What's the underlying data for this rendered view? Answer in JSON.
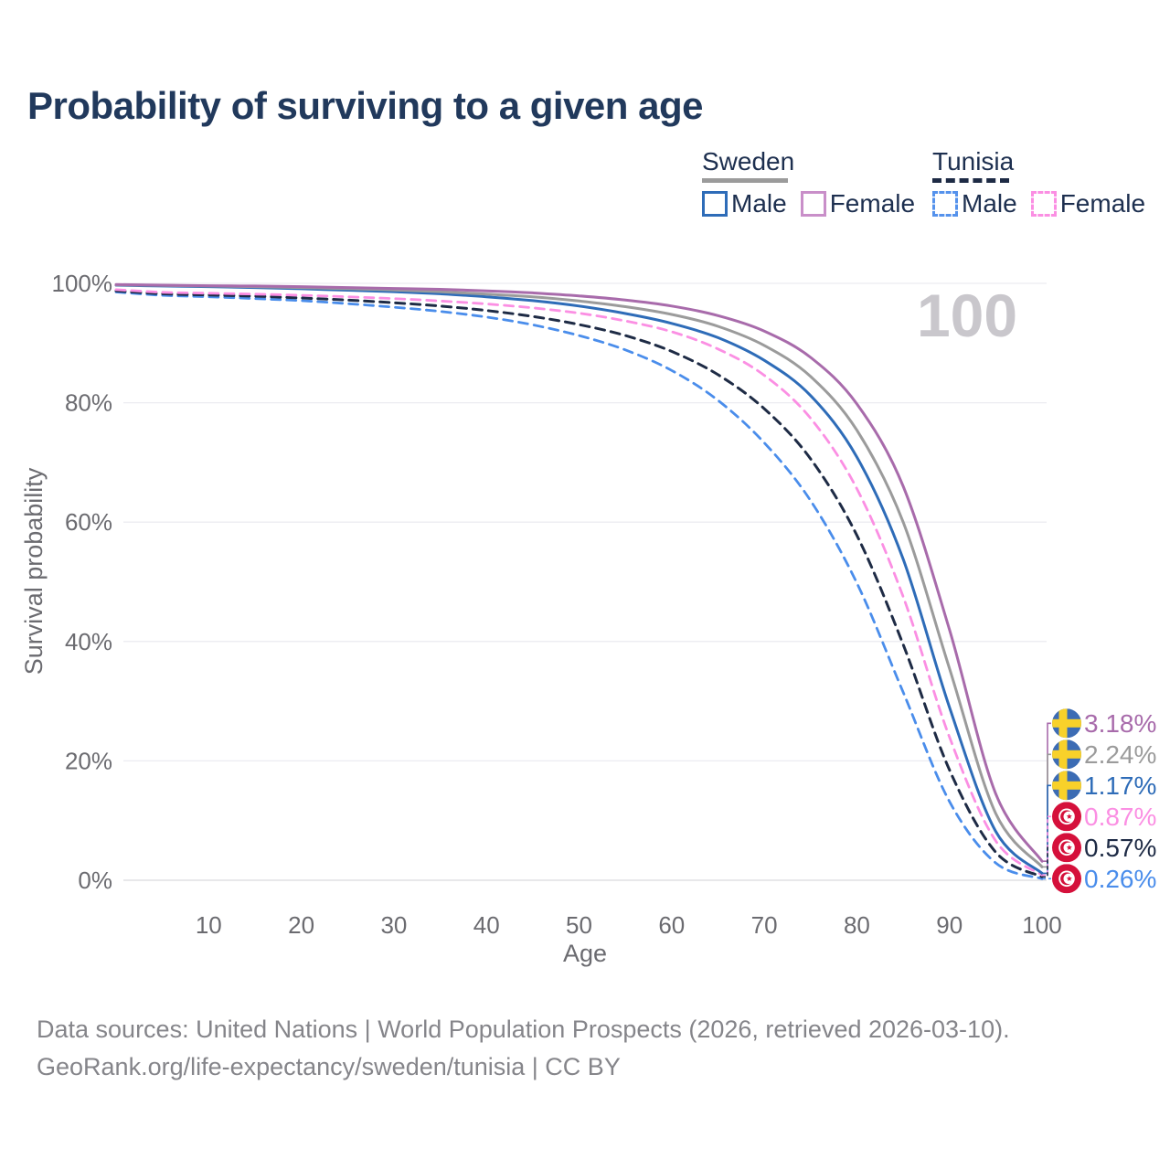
{
  "title": "Probability of surviving to a given age",
  "legend": {
    "groups": [
      {
        "title": "Sweden",
        "underline_color": "#9b9b9b",
        "underline_dashed": false,
        "items": [
          {
            "label": "Male",
            "color": "#2e6cb8",
            "dashed": false
          },
          {
            "label": "Female",
            "color": "#c98fc9",
            "dashed": false
          }
        ]
      },
      {
        "title": "Tunisia",
        "underline_color": "#1e2b45",
        "underline_dashed": true,
        "items": [
          {
            "label": "Male",
            "color": "#5592ec",
            "dashed": true
          },
          {
            "label": "Female",
            "color": "#fb8fe3",
            "dashed": true
          }
        ]
      }
    ]
  },
  "chart_data": {
    "type": "line",
    "title": "Probability of surviving to a given age",
    "xlabel": "Age",
    "ylabel": "Survival probability",
    "xlim": [
      0,
      110
    ],
    "ylim": [
      0,
      100
    ],
    "grid": "horizontal",
    "legend_position": "top-right",
    "watermark": "100",
    "x_ticks": [
      10,
      20,
      30,
      40,
      50,
      60,
      70,
      80,
      90,
      100
    ],
    "y_ticks": [
      {
        "value": 100,
        "label": "100%"
      },
      {
        "value": 80,
        "label": "80%"
      },
      {
        "value": 60,
        "label": "60%"
      },
      {
        "value": 40,
        "label": "40%"
      },
      {
        "value": 20,
        "label": "20%"
      },
      {
        "value": 0,
        "label": "0%"
      }
    ],
    "x": [
      0,
      5,
      10,
      15,
      20,
      25,
      30,
      35,
      40,
      45,
      50,
      55,
      60,
      65,
      70,
      75,
      80,
      85,
      90,
      95,
      100
    ],
    "series": [
      {
        "key": "sweden-female",
        "name": "Sweden Female",
        "country": "Sweden",
        "sex": "Female",
        "color": "#a86bab",
        "dashed": false,
        "width": 3,
        "values": [
          99.8,
          99.7,
          99.6,
          99.55,
          99.45,
          99.3,
          99.15,
          99.0,
          98.75,
          98.4,
          97.9,
          97.2,
          96.2,
          94.6,
          92.0,
          87.6,
          79.8,
          66.0,
          42.0,
          14.5,
          3.18
        ],
        "end_label": "3.18%",
        "flag": "sweden"
      },
      {
        "key": "sweden-both",
        "name": "Sweden (both sexes)",
        "country": "Sweden",
        "sex": "Both",
        "color": "#9b9b9b",
        "dashed": false,
        "width": 3,
        "values": [
          99.75,
          99.65,
          99.55,
          99.45,
          99.3,
          99.1,
          98.9,
          98.6,
          98.2,
          97.75,
          97.05,
          96.1,
          94.8,
          92.8,
          89.6,
          84.4,
          75.4,
          60.0,
          35.5,
          11.2,
          2.24
        ],
        "end_label": "2.24%",
        "flag": "sweden"
      },
      {
        "key": "sweden-male",
        "name": "Sweden Male",
        "country": "Sweden",
        "sex": "Male",
        "color": "#2e6cb8",
        "dashed": false,
        "width": 3,
        "values": [
          99.7,
          99.55,
          99.45,
          99.3,
          99.1,
          98.85,
          98.6,
          98.25,
          97.75,
          97.1,
          96.2,
          94.95,
          93.3,
          90.9,
          87.1,
          81.2,
          70.9,
          53.8,
          29.0,
          8.2,
          1.17
        ],
        "end_label": "1.17%",
        "flag": "sweden"
      },
      {
        "key": "tunisia-female",
        "name": "Tunisia Female",
        "country": "Tunisia",
        "sex": "Female",
        "color": "#fb8fe3",
        "dashed": true,
        "width": 2.8,
        "values": [
          98.95,
          98.5,
          98.35,
          98.2,
          98.0,
          97.75,
          97.45,
          97.05,
          96.55,
          95.9,
          95.0,
          93.7,
          91.9,
          89.0,
          84.6,
          77.4,
          65.6,
          47.5,
          24.0,
          6.6,
          0.87
        ],
        "end_label": "0.87%",
        "flag": "tunisia"
      },
      {
        "key": "tunisia-both",
        "name": "Tunisia (both sexes)",
        "country": "Tunisia",
        "sex": "Both",
        "color": "#1e2b45",
        "dashed": true,
        "width": 3,
        "values": [
          98.75,
          98.25,
          98.05,
          97.85,
          97.55,
          97.2,
          96.75,
          96.2,
          95.45,
          94.45,
          93.1,
          91.25,
          88.6,
          84.7,
          79.0,
          70.6,
          57.8,
          39.5,
          18.5,
          4.7,
          0.57
        ],
        "end_label": "0.57%",
        "flag": "tunisia"
      },
      {
        "key": "tunisia-male",
        "name": "Tunisia Male",
        "country": "Tunisia",
        "sex": "Male",
        "color": "#4a8deb",
        "dashed": true,
        "width": 2.8,
        "values": [
          98.55,
          98.0,
          97.75,
          97.45,
          97.1,
          96.6,
          96.0,
          95.3,
          94.35,
          93.05,
          91.25,
          88.85,
          85.4,
          80.4,
          73.3,
          63.6,
          49.8,
          31.5,
          13.2,
          2.9,
          0.26
        ],
        "end_label": "0.26%",
        "flag": "tunisia"
      }
    ]
  },
  "flags": {
    "sweden_blue": "#3c6cb4",
    "sweden_yellow": "#f8d12a",
    "tunisia_red": "#d5103b",
    "white": "#ffffff"
  },
  "footer": {
    "line1": "Data sources: United Nations | World Population Prospects (2026, retrieved 2026-03-10).",
    "line2": "GeoRank.org/life-expectancy/sweden/tunisia | CC BY"
  }
}
